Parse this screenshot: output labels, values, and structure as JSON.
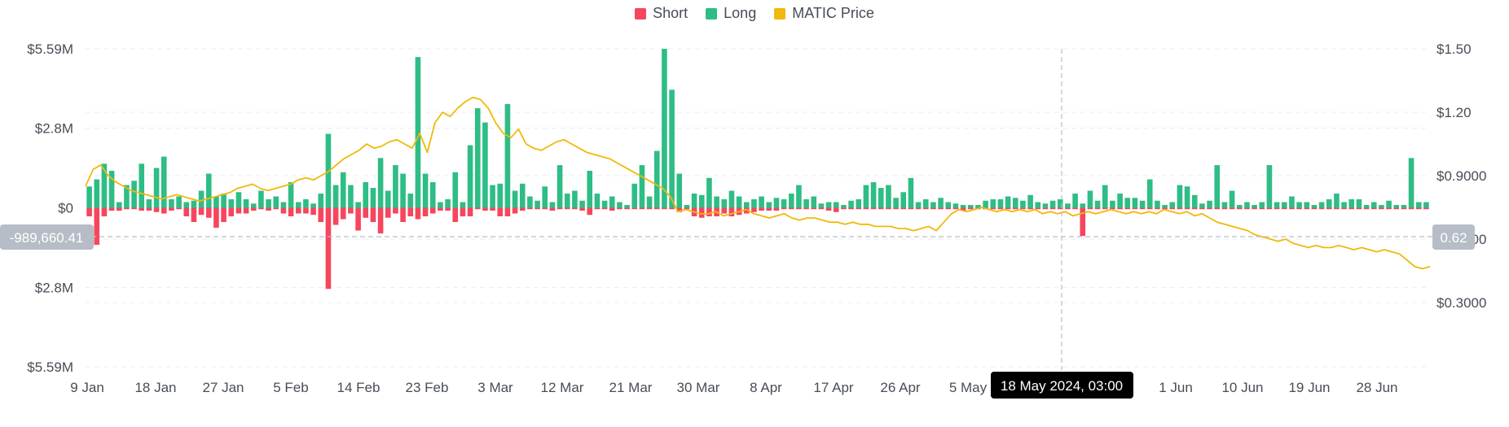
{
  "legend": [
    {
      "label": "Short",
      "color": "#f6465d"
    },
    {
      "label": "Long",
      "color": "#2ebd85"
    },
    {
      "label": "MATIC Price",
      "color": "#f0b90b"
    }
  ],
  "crosshair": {
    "date_label": "18 May 2024, 03:00",
    "left_value": "-989,660.41",
    "right_value": "0.62"
  },
  "chart_data": {
    "type": "bar",
    "left_axis": {
      "ticks": [
        "$5.59M",
        "$2.8M",
        "$0",
        "$2.8M",
        "$5.59M"
      ],
      "tick_values": [
        5.59,
        2.8,
        0,
        -2.8,
        -5.59
      ],
      "ylim": [
        -5.59,
        5.59
      ],
      "unit": "$M"
    },
    "right_axis": {
      "ticks": [
        "$1.50",
        "$1.20",
        "$0.9000",
        "$0.6000",
        "$0.3000"
      ],
      "tick_values": [
        1.5,
        1.2,
        0.9,
        0.6,
        0.3
      ],
      "ylim": [
        0.0,
        1.5
      ]
    },
    "x_ticks": [
      "9 Jan",
      "18 Jan",
      "27 Jan",
      "5 Feb",
      "14 Feb",
      "23 Feb",
      "3 Mar",
      "12 Mar",
      "21 Mar",
      "30 Mar",
      "8 Apr",
      "17 Apr",
      "26 Apr",
      "5 May",
      "",
      "1 Jun",
      "10 Jun",
      "19 Jun",
      "28 Jun"
    ],
    "series": [
      {
        "name": "Long",
        "color": "#2ebd85",
        "values": [
          0.75,
          1.0,
          1.55,
          1.3,
          0.2,
          0.8,
          0.95,
          1.55,
          0.3,
          1.4,
          1.8,
          0.3,
          0.4,
          0.2,
          0.25,
          0.6,
          1.2,
          0.4,
          0.5,
          0.3,
          0.55,
          0.3,
          0.15,
          0.6,
          0.3,
          0.4,
          0.2,
          0.9,
          0.2,
          0.3,
          0.15,
          0.5,
          2.6,
          0.8,
          1.25,
          0.8,
          0.2,
          0.9,
          0.7,
          1.75,
          0.6,
          1.5,
          1.2,
          0.5,
          5.3,
          1.2,
          0.9,
          0.2,
          0.3,
          1.25,
          0.2,
          2.2,
          3.5,
          3.0,
          0.8,
          0.85,
          3.65,
          0.6,
          0.85,
          0.4,
          0.25,
          0.75,
          0.2,
          1.5,
          0.5,
          0.6,
          0.25,
          1.3,
          0.5,
          0.25,
          0.4,
          0.2,
          0.1,
          0.85,
          1.5,
          0.4,
          2.0,
          5.59,
          4.15,
          1.2,
          0.1,
          0.5,
          0.45,
          1.05,
          0.4,
          0.3,
          0.6,
          0.4,
          0.2,
          0.3,
          0.4,
          0.2,
          0.35,
          0.3,
          0.5,
          0.8,
          0.3,
          0.4,
          0.15,
          0.2,
          0.2,
          0.1,
          0.25,
          0.3,
          0.8,
          0.9,
          0.7,
          0.8,
          0.35,
          0.55,
          1.05,
          0.2,
          0.3,
          0.2,
          0.35,
          0.2,
          0.15,
          0.1,
          0.1,
          0.1,
          0.25,
          0.3,
          0.3,
          0.4,
          0.35,
          0.25,
          0.45,
          0.2,
          0.15,
          0.25,
          0.3,
          0.15,
          0.5,
          0.15,
          0.6,
          0.25,
          0.8,
          0.25,
          0.5,
          0.35,
          0.35,
          0.25,
          1.0,
          0.25,
          0.1,
          0.2,
          0.8,
          0.75,
          0.45,
          0.15,
          0.25,
          1.5,
          0.2,
          0.6,
          0.1,
          0.2,
          0.1,
          0.2,
          1.5,
          0.2,
          0.2,
          0.4,
          0.2,
          0.2,
          0.1,
          0.2,
          0.3,
          0.5,
          0.2,
          0.3,
          0.3,
          0.1,
          0.2,
          0.1,
          0.25,
          0.1,
          0.1,
          1.75,
          0.2,
          0.2
        ]
      },
      {
        "name": "Short",
        "color": "#f6465d",
        "values": [
          -0.3,
          -1.3,
          -0.3,
          -0.1,
          -0.1,
          -0.05,
          -0.05,
          -0.1,
          -0.1,
          -0.15,
          -0.2,
          -0.1,
          -0.05,
          -0.3,
          -0.5,
          -0.25,
          -0.35,
          -0.7,
          -0.5,
          -0.3,
          -0.2,
          -0.2,
          -0.1,
          -0.05,
          -0.1,
          -0.05,
          -0.2,
          -0.3,
          -0.2,
          -0.2,
          -0.25,
          -0.5,
          -2.85,
          -0.6,
          -0.4,
          -0.2,
          -0.8,
          -0.35,
          -0.5,
          -0.9,
          -0.35,
          -0.2,
          -0.5,
          -0.3,
          -0.4,
          -0.3,
          -0.2,
          -0.1,
          -0.1,
          -0.5,
          -0.3,
          -0.3,
          -0.05,
          -0.1,
          -0.1,
          -0.3,
          -0.3,
          -0.2,
          -0.1,
          -0.05,
          -0.05,
          -0.05,
          -0.1,
          -0.05,
          -0.05,
          -0.05,
          -0.1,
          -0.25,
          -0.05,
          -0.05,
          -0.1,
          -0.05,
          -0.05,
          -0.05,
          -0.05,
          -0.05,
          -0.05,
          -0.05,
          -0.05,
          -0.15,
          -0.05,
          -0.3,
          -0.35,
          -0.3,
          -0.3,
          -0.2,
          -0.3,
          -0.25,
          -0.2,
          -0.15,
          -0.1,
          -0.1,
          -0.1,
          -0.05,
          -0.05,
          -0.05,
          -0.05,
          -0.05,
          -0.05,
          -0.1,
          -0.15,
          -0.05,
          -0.05,
          -0.05,
          -0.05,
          -0.05,
          -0.05,
          -0.05,
          -0.05,
          -0.05,
          -0.05,
          -0.05,
          -0.05,
          -0.05,
          -0.05,
          -0.05,
          -0.05,
          -0.1,
          -0.05,
          -0.05,
          -0.05,
          -0.05,
          -0.05,
          -0.05,
          -0.05,
          -0.05,
          -0.05,
          -0.05,
          -0.05,
          -0.05,
          -0.05,
          -0.05,
          -0.05,
          -0.99,
          -0.05,
          -0.05,
          -0.05,
          -0.05,
          -0.05,
          -0.05,
          -0.05,
          -0.05,
          -0.05,
          -0.05,
          -0.05,
          -0.05,
          -0.05,
          -0.05,
          -0.05,
          -0.05,
          -0.05,
          -0.05,
          -0.05,
          -0.05,
          -0.05,
          -0.05,
          -0.05,
          -0.05,
          -0.05,
          -0.05,
          -0.05,
          -0.05,
          -0.05,
          -0.05,
          -0.05,
          -0.05,
          -0.05,
          -0.05,
          -0.05,
          -0.05,
          -0.05,
          -0.05,
          -0.05,
          -0.05,
          -0.05,
          -0.05,
          -0.05,
          -0.05,
          -0.05,
          -0.05,
          -0.3,
          -0.05
        ]
      },
      {
        "name": "MATIC Price",
        "color": "#f0b90b",
        "values": [
          0.85,
          0.93,
          0.95,
          0.9,
          0.87,
          0.85,
          0.83,
          0.82,
          0.81,
          0.8,
          0.79,
          0.8,
          0.81,
          0.8,
          0.79,
          0.78,
          0.79,
          0.8,
          0.81,
          0.82,
          0.84,
          0.85,
          0.86,
          0.84,
          0.83,
          0.84,
          0.85,
          0.86,
          0.88,
          0.89,
          0.88,
          0.9,
          0.92,
          0.95,
          0.98,
          1.0,
          1.02,
          1.05,
          1.03,
          1.04,
          1.06,
          1.07,
          1.05,
          1.03,
          1.1,
          1.01,
          1.15,
          1.2,
          1.18,
          1.22,
          1.25,
          1.27,
          1.26,
          1.22,
          1.15,
          1.1,
          1.08,
          1.12,
          1.05,
          1.03,
          1.02,
          1.04,
          1.06,
          1.07,
          1.05,
          1.03,
          1.01,
          1.0,
          0.99,
          0.98,
          0.96,
          0.94,
          0.92,
          0.9,
          0.88,
          0.86,
          0.84,
          0.8,
          0.73,
          0.74,
          0.73,
          0.72,
          0.72,
          0.73,
          0.71,
          0.72,
          0.73,
          0.74,
          0.72,
          0.71,
          0.7,
          0.71,
          0.72,
          0.7,
          0.69,
          0.7,
          0.7,
          0.69,
          0.68,
          0.68,
          0.67,
          0.68,
          0.67,
          0.67,
          0.66,
          0.66,
          0.66,
          0.65,
          0.65,
          0.64,
          0.65,
          0.66,
          0.64,
          0.68,
          0.72,
          0.74,
          0.73,
          0.74,
          0.75,
          0.74,
          0.73,
          0.74,
          0.73,
          0.74,
          0.73,
          0.74,
          0.72,
          0.73,
          0.72,
          0.73,
          0.71,
          0.72,
          0.73,
          0.72,
          0.73,
          0.74,
          0.73,
          0.72,
          0.73,
          0.72,
          0.73,
          0.72,
          0.74,
          0.73,
          0.72,
          0.73,
          0.71,
          0.72,
          0.7,
          0.68,
          0.67,
          0.66,
          0.65,
          0.64,
          0.62,
          0.61,
          0.6,
          0.59,
          0.6,
          0.58,
          0.57,
          0.56,
          0.57,
          0.56,
          0.56,
          0.57,
          0.56,
          0.55,
          0.56,
          0.55,
          0.54,
          0.55,
          0.54,
          0.53,
          0.5,
          0.47,
          0.46,
          0.47
        ]
      }
    ]
  }
}
